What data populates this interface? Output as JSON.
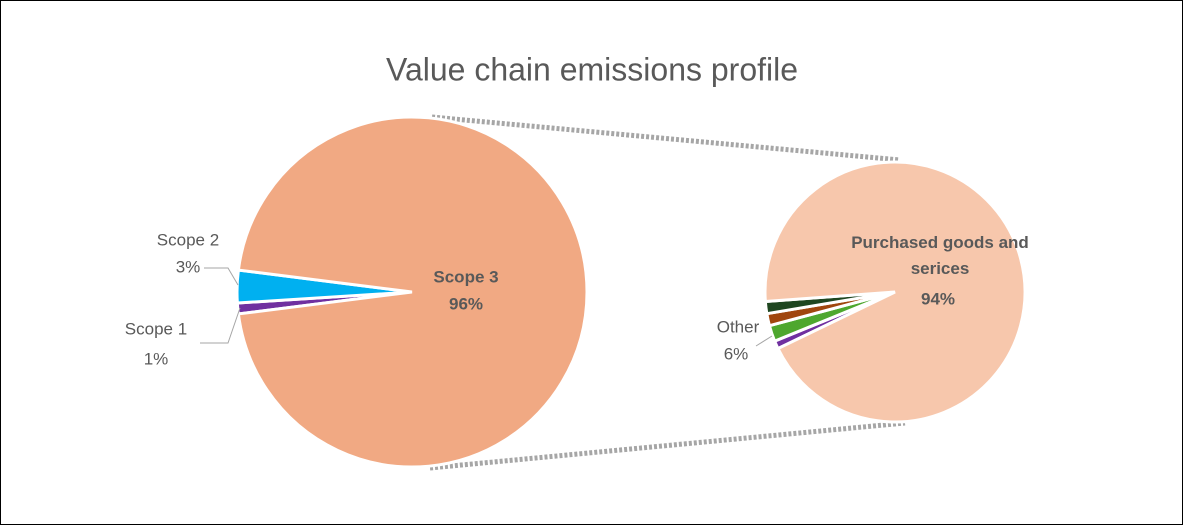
{
  "chart_data": [
    {
      "type": "pie",
      "title": "Value chain emissions profile",
      "categories": [
        "Scope 1",
        "Scope 2",
        "Scope 3"
      ],
      "values": [
        1,
        3,
        96
      ],
      "value_labels": [
        "1%",
        "3%",
        "96%"
      ],
      "colors": [
        "#7030a0",
        "#00b0f0",
        "#f1a983"
      ]
    },
    {
      "type": "pie",
      "categories": [
        null,
        null,
        null,
        null,
        "Purchased goods and serices"
      ],
      "values": [
        1,
        2,
        1.5,
        1.5,
        94
      ],
      "value_labels": [
        null,
        null,
        null,
        null,
        "94%"
      ],
      "colors": [
        "#7030a0",
        "#4ea72e",
        "#a0460e",
        "#1e4620",
        "#f7c7ac"
      ],
      "group": {
        "label": "Other",
        "value": 6,
        "value_label": "6%"
      }
    }
  ]
}
